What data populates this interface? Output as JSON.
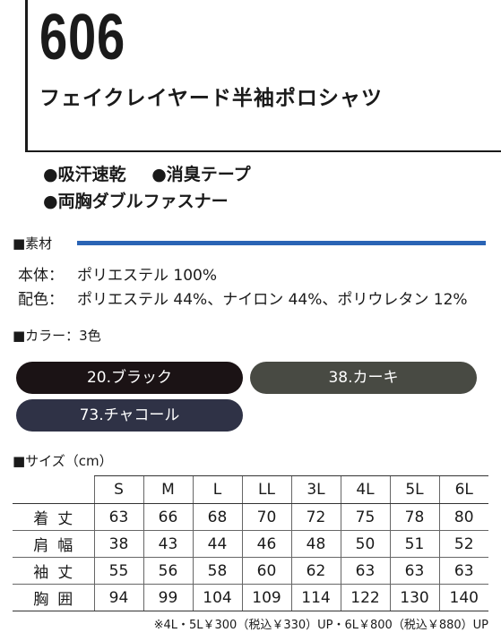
{
  "product": {
    "code": "606",
    "name": "フェイクレイヤード半袖ポロシャツ"
  },
  "features": [
    [
      "●吸汗速乾",
      "●消臭テープ"
    ],
    [
      "●両胸ダブルファスナー"
    ]
  ],
  "material": {
    "header": "■素材",
    "accent_color": "#2a64b5",
    "rows": [
      {
        "label": "本体：",
        "value": "ポリエステル 100%"
      },
      {
        "label": "配色：",
        "value": "ポリエステル 44%、ナイロン 44%、ポリウレタン 12%"
      }
    ]
  },
  "colors": {
    "header": "■カラー：3色",
    "items": [
      {
        "label": "20.ブラック",
        "swatch": "#1b1315"
      },
      {
        "label": "38.カーキ",
        "swatch": "#484a43"
      },
      {
        "label": "73.チャコール",
        "swatch": "#2f3246"
      }
    ]
  },
  "sizes": {
    "header": "■サイズ（cm）",
    "columns": [
      "S",
      "M",
      "L",
      "LL",
      "3L",
      "4L",
      "5L",
      "6L"
    ],
    "rows": [
      {
        "label": "着丈",
        "values": [
          "63",
          "66",
          "68",
          "70",
          "72",
          "75",
          "78",
          "80"
        ]
      },
      {
        "label": "肩幅",
        "values": [
          "38",
          "43",
          "44",
          "46",
          "48",
          "50",
          "51",
          "52"
        ]
      },
      {
        "label": "袖丈",
        "values": [
          "55",
          "56",
          "58",
          "60",
          "62",
          "63",
          "63",
          "63"
        ]
      },
      {
        "label": "胸囲",
        "values": [
          "94",
          "99",
          "104",
          "109",
          "114",
          "122",
          "130",
          "140"
        ]
      }
    ],
    "note": "※4L・5L￥300（税込￥330）UP・6L￥800（税込￥880）UP"
  }
}
